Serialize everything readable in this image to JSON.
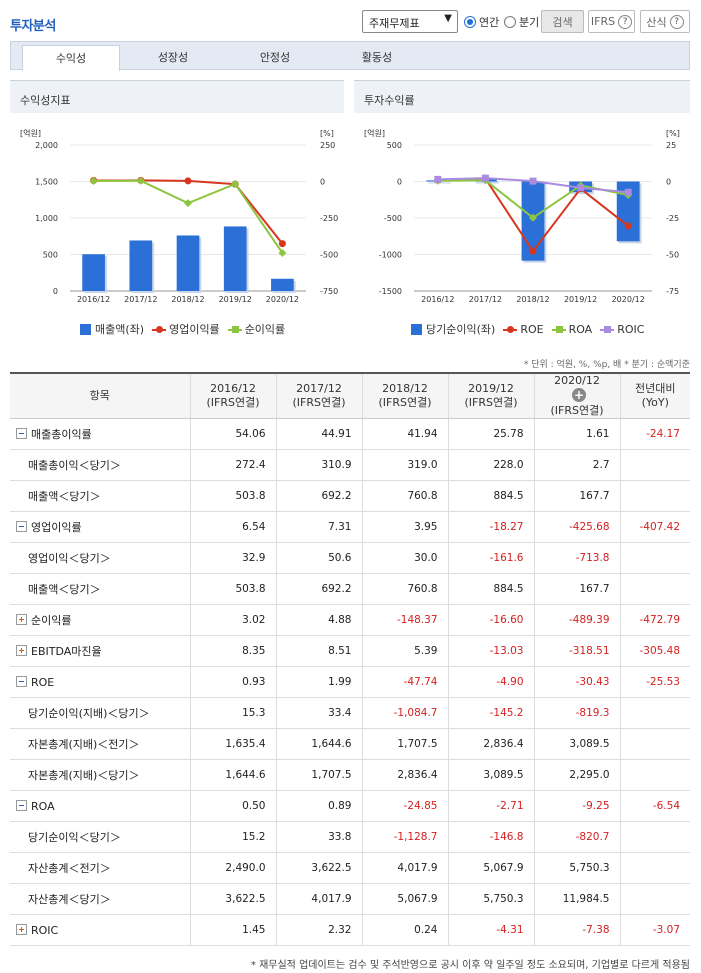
{
  "header": {
    "title": "투자분석",
    "select_value": "주재무제표",
    "radio_annual": "연간",
    "radio_quarter": "분기",
    "search_label": "검색",
    "ifrs_label": "IFRS",
    "formula_label": "산식",
    "help_mark": "?"
  },
  "tabs": [
    "수익성",
    "성장성",
    "안정성",
    "활동성"
  ],
  "charts": {
    "left": {
      "title": "수익성지표",
      "y_left_unit": "[억원]",
      "y_right_unit": "[%]",
      "y_left_ticks": [
        "2,000",
        "1,500",
        "1,000",
        "500",
        "0"
      ],
      "y_right_ticks": [
        "250",
        "0",
        "-250",
        "-500",
        "-750"
      ],
      "categories": [
        "2016/12",
        "2017/12",
        "2018/12",
        "2019/12",
        "2020/12"
      ],
      "legend": [
        "매출액(좌)",
        "영업이익률",
        "순이익률"
      ]
    },
    "right": {
      "title": "투자수익률",
      "y_left_unit": "[억원]",
      "y_right_unit": "[%]",
      "y_left_ticks": [
        "500",
        "0",
        "-500",
        "-1000",
        "-1500"
      ],
      "y_right_ticks": [
        "25",
        "0",
        "-25",
        "-50",
        "-75"
      ],
      "categories": [
        "2016/12",
        "2017/12",
        "2018/12",
        "2019/12",
        "2020/12"
      ],
      "legend": [
        "당기순이익(좌)",
        "ROE",
        "ROA",
        "ROIC"
      ]
    }
  },
  "chart_data": [
    {
      "type": "bar+line",
      "title": "수익성지표",
      "categories": [
        "2016/12",
        "2017/12",
        "2018/12",
        "2019/12",
        "2020/12"
      ],
      "ylim_left": [
        0,
        2000
      ],
      "ylim_right": [
        -750,
        250
      ],
      "series": [
        {
          "name": "매출액(좌)",
          "kind": "bar",
          "axis": "left",
          "color": "#2b70d6",
          "values": [
            503.8,
            692.2,
            760.8,
            884.5,
            167.7
          ]
        },
        {
          "name": "영업이익률",
          "kind": "line",
          "axis": "right",
          "color": "#d8351f",
          "values": [
            6.54,
            7.31,
            3.95,
            -18.27,
            -425.68
          ]
        },
        {
          "name": "순이익률",
          "kind": "line",
          "axis": "right",
          "color": "#8cc63f",
          "values": [
            3.02,
            4.88,
            -148.37,
            -16.6,
            -489.39
          ]
        }
      ]
    },
    {
      "type": "bar+line",
      "title": "투자수익률",
      "categories": [
        "2016/12",
        "2017/12",
        "2018/12",
        "2019/12",
        "2020/12"
      ],
      "ylim_left": [
        -1500,
        500
      ],
      "ylim_right": [
        -75,
        25
      ],
      "series": [
        {
          "name": "당기순이익(좌)",
          "kind": "bar",
          "axis": "left",
          "color": "#2b70d6",
          "values": [
            15.3,
            33.4,
            -1084.7,
            -145.2,
            -819.3
          ]
        },
        {
          "name": "ROE",
          "kind": "line",
          "axis": "right",
          "color": "#d8351f",
          "values": [
            0.93,
            1.99,
            -47.74,
            -4.9,
            -30.43
          ]
        },
        {
          "name": "ROA",
          "kind": "line",
          "axis": "right",
          "color": "#8cc63f",
          "values": [
            0.5,
            0.89,
            -24.85,
            -2.71,
            -9.25
          ]
        },
        {
          "name": "ROIC",
          "kind": "line",
          "axis": "right",
          "color": "#a98be0",
          "values": [
            1.45,
            2.32,
            0.24,
            -4.31,
            -7.38
          ]
        }
      ]
    }
  ],
  "unit_note": "* 단위 : 억원, %, %p, 배   * 분기 : 순액기준",
  "table": {
    "item_header": "항목",
    "col_headers": [
      {
        "period": "2016/12",
        "basis": "(IFRS연결)"
      },
      {
        "period": "2017/12",
        "basis": "(IFRS연결)"
      },
      {
        "period": "2018/12",
        "basis": "(IFRS연결)"
      },
      {
        "period": "2019/12",
        "basis": "(IFRS연결)"
      },
      {
        "period": "2020/12",
        "basis": "(IFRS연결)"
      }
    ],
    "yoy_header_1": "전년대비",
    "yoy_header_2": "(YoY)",
    "add_mark": "+",
    "rows": [
      {
        "label": "매출총이익률",
        "level": 0,
        "toggle": "minus",
        "values": [
          "54.06",
          "44.91",
          "41.94",
          "25.78",
          "1.61",
          "-24.17"
        ]
      },
      {
        "label": "매출총이익＜당기＞",
        "level": 1,
        "values": [
          "272.4",
          "310.9",
          "319.0",
          "228.0",
          "2.7",
          ""
        ]
      },
      {
        "label": "매출액＜당기＞",
        "level": 1,
        "values": [
          "503.8",
          "692.2",
          "760.8",
          "884.5",
          "167.7",
          ""
        ]
      },
      {
        "label": "영업이익률",
        "level": 0,
        "toggle": "minus",
        "values": [
          "6.54",
          "7.31",
          "3.95",
          "-18.27",
          "-425.68",
          "-407.42"
        ]
      },
      {
        "label": "영업이익＜당기＞",
        "level": 1,
        "values": [
          "32.9",
          "50.6",
          "30.0",
          "-161.6",
          "-713.8",
          ""
        ]
      },
      {
        "label": "매출액＜당기＞",
        "level": 1,
        "values": [
          "503.8",
          "692.2",
          "760.8",
          "884.5",
          "167.7",
          ""
        ]
      },
      {
        "label": "순이익률",
        "level": 0,
        "toggle": "plus",
        "values": [
          "3.02",
          "4.88",
          "-148.37",
          "-16.60",
          "-489.39",
          "-472.79"
        ]
      },
      {
        "label": "EBITDA마진율",
        "level": 0,
        "toggle": "plus",
        "values": [
          "8.35",
          "8.51",
          "5.39",
          "-13.03",
          "-318.51",
          "-305.48"
        ]
      },
      {
        "label": "ROE",
        "level": 0,
        "toggle": "minus",
        "values": [
          "0.93",
          "1.99",
          "-47.74",
          "-4.90",
          "-30.43",
          "-25.53"
        ]
      },
      {
        "label": "당기순이익(지배)＜당기＞",
        "level": 1,
        "values": [
          "15.3",
          "33.4",
          "-1,084.7",
          "-145.2",
          "-819.3",
          ""
        ]
      },
      {
        "label": "자본총계(지배)＜전기＞",
        "level": 1,
        "values": [
          "1,635.4",
          "1,644.6",
          "1,707.5",
          "2,836.4",
          "3,089.5",
          ""
        ]
      },
      {
        "label": "자본총계(지배)＜당기＞",
        "level": 1,
        "values": [
          "1,644.6",
          "1,707.5",
          "2,836.4",
          "3,089.5",
          "2,295.0",
          ""
        ]
      },
      {
        "label": "ROA",
        "level": 0,
        "toggle": "minus",
        "values": [
          "0.50",
          "0.89",
          "-24.85",
          "-2.71",
          "-9.25",
          "-6.54"
        ]
      },
      {
        "label": "당기순이익＜당기＞",
        "level": 1,
        "values": [
          "15.2",
          "33.8",
          "-1,128.7",
          "-146.8",
          "-820.7",
          ""
        ]
      },
      {
        "label": "자산총계＜전기＞",
        "level": 1,
        "values": [
          "2,490.0",
          "3,622.5",
          "4,017.9",
          "5,067.9",
          "5,750.3",
          ""
        ]
      },
      {
        "label": "자산총계＜당기＞",
        "level": 1,
        "values": [
          "3,622.5",
          "4,017.9",
          "5,067.9",
          "5,750.3",
          "11,984.5",
          ""
        ]
      },
      {
        "label": "ROIC",
        "level": 0,
        "toggle": "plus",
        "values": [
          "1.45",
          "2.32",
          "0.24",
          "-4.31",
          "-7.38",
          "-3.07"
        ]
      }
    ]
  },
  "footnote": "* 재무실적 업데이트는 검수 및 주석반영으로 공시 이후 약 일주일 정도 소요되며, 기업별로 다르게 적용됨"
}
